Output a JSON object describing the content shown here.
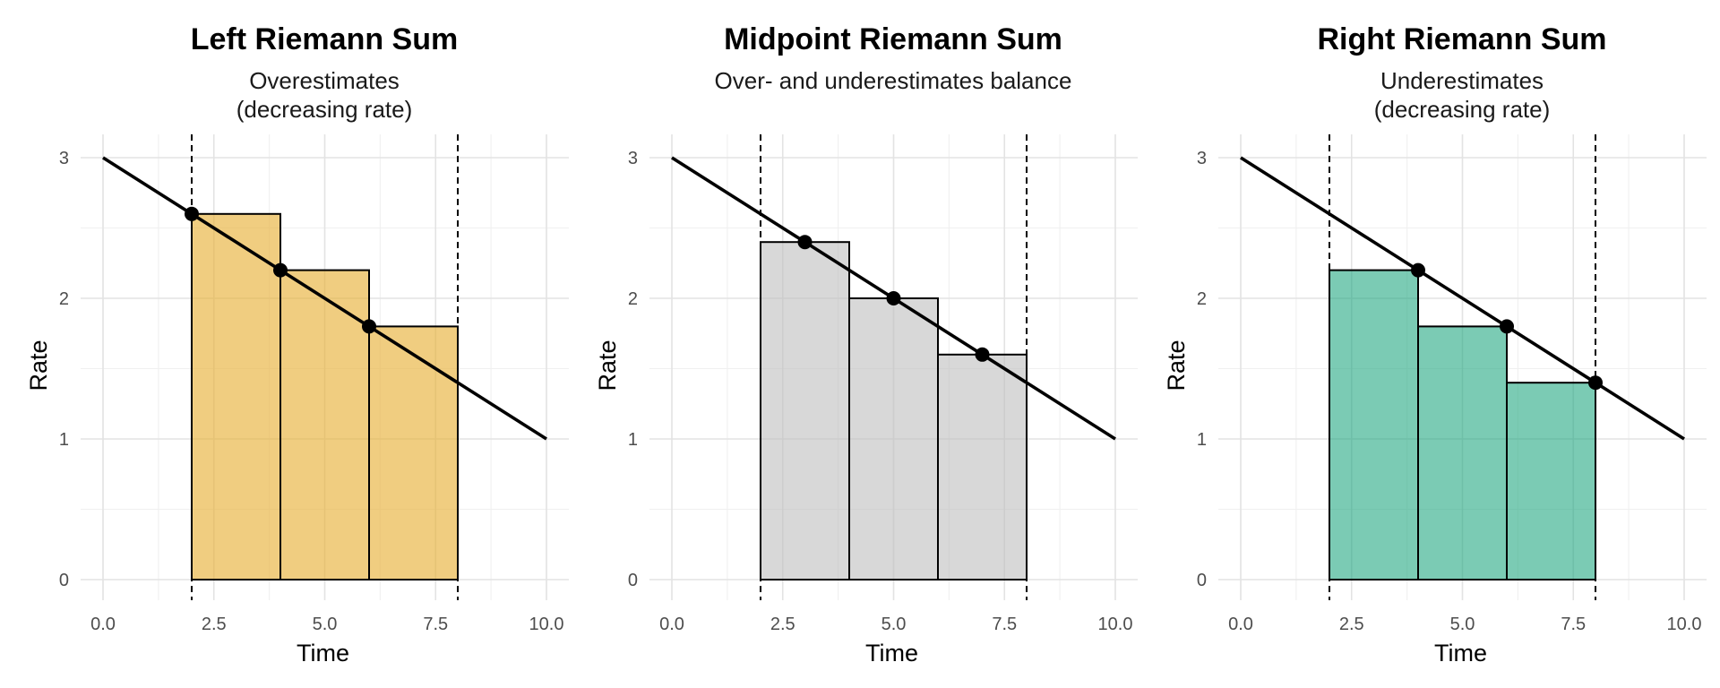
{
  "chart_data": [
    {
      "type": "bar",
      "title": "Left Riemann Sum",
      "subtitle": [
        "Overestimates",
        "(decreasing rate)"
      ],
      "xlabel": "Time",
      "ylabel": "Rate",
      "xlim": [
        0,
        10
      ],
      "ylim": [
        0,
        3
      ],
      "xticks": [
        "0.0",
        "2.5",
        "5.0",
        "7.5",
        "10.0"
      ],
      "yticks": [
        "0",
        "1",
        "2",
        "3"
      ],
      "line": {
        "x": [
          0,
          10
        ],
        "y": [
          3,
          1
        ]
      },
      "interval": [
        2,
        8
      ],
      "rectangles": [
        {
          "x0": 2,
          "x1": 4,
          "height": 2.6
        },
        {
          "x0": 4,
          "x1": 6,
          "height": 2.2
        },
        {
          "x0": 6,
          "x1": 8,
          "height": 1.8
        }
      ],
      "points": [
        {
          "x": 2,
          "y": 2.6
        },
        {
          "x": 4,
          "y": 2.2
        },
        {
          "x": 6,
          "y": 1.8
        }
      ],
      "fill_color": "#E8B23C",
      "fill_opacity": 0.65,
      "grid": true
    },
    {
      "type": "bar",
      "title": "Midpoint Riemann Sum",
      "subtitle": [
        "Over- and underestimates balance"
      ],
      "xlabel": "Time",
      "ylabel": "Rate",
      "xlim": [
        0,
        10
      ],
      "ylim": [
        0,
        3
      ],
      "xticks": [
        "0.0",
        "2.5",
        "5.0",
        "7.5",
        "10.0"
      ],
      "yticks": [
        "0",
        "1",
        "2",
        "3"
      ],
      "line": {
        "x": [
          0,
          10
        ],
        "y": [
          3,
          1
        ]
      },
      "interval": [
        2,
        8
      ],
      "rectangles": [
        {
          "x0": 2,
          "x1": 4,
          "height": 2.4
        },
        {
          "x0": 4,
          "x1": 6,
          "height": 2.0
        },
        {
          "x0": 6,
          "x1": 8,
          "height": 1.6
        }
      ],
      "points": [
        {
          "x": 3,
          "y": 2.4
        },
        {
          "x": 5,
          "y": 2.0
        },
        {
          "x": 7,
          "y": 1.6
        }
      ],
      "fill_color": "#BEBEBE",
      "fill_opacity": 0.6,
      "grid": true
    },
    {
      "type": "bar",
      "title": "Right Riemann Sum",
      "subtitle": [
        "Underestimates",
        "(decreasing rate)"
      ],
      "xlabel": "Time",
      "ylabel": "Rate",
      "xlim": [
        0,
        10
      ],
      "ylim": [
        0,
        3
      ],
      "xticks": [
        "0.0",
        "2.5",
        "5.0",
        "7.5",
        "10.0"
      ],
      "yticks": [
        "0",
        "1",
        "2",
        "3"
      ],
      "line": {
        "x": [
          0,
          10
        ],
        "y": [
          3,
          1
        ]
      },
      "interval": [
        2,
        8
      ],
      "rectangles": [
        {
          "x0": 2,
          "x1": 4,
          "height": 2.2
        },
        {
          "x0": 4,
          "x1": 6,
          "height": 1.8
        },
        {
          "x0": 6,
          "x1": 8,
          "height": 1.4
        }
      ],
      "points": [
        {
          "x": 4,
          "y": 2.2
        },
        {
          "x": 6,
          "y": 1.8
        },
        {
          "x": 8,
          "y": 1.4
        }
      ],
      "fill_color": "#1BA57E",
      "fill_opacity": 0.58,
      "grid": true
    }
  ]
}
